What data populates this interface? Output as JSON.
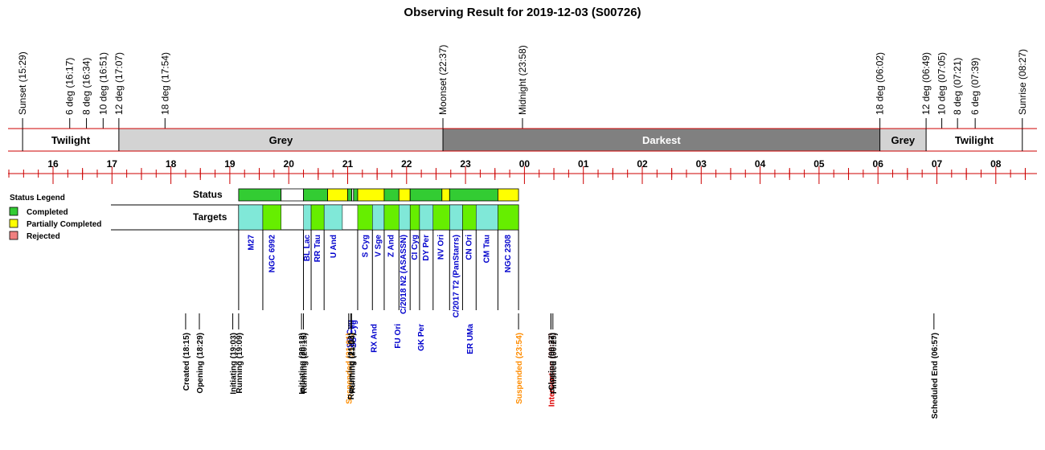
{
  "title": "Observing Result for 2019-12-03 (S00726)",
  "colors": {
    "axis_red": "#cc0000",
    "twilight": "#ffffff",
    "grey": "#d3d3d3",
    "darkest": "#808080",
    "completed": "#33cc33",
    "partial": "#ffff00",
    "rejected": "#f08080",
    "target_cyan": "#80e8d8",
    "target_green": "#66ee00",
    "target_text": "#0000cc",
    "moon_text": "#0000cc",
    "suspended_text": "#ff8c00",
    "intervention_text": "#dd0000"
  },
  "time_axis": {
    "hours": [
      {
        "label": "16",
        "t": 16
      },
      {
        "label": "17",
        "t": 17
      },
      {
        "label": "18",
        "t": 18
      },
      {
        "label": "19",
        "t": 19
      },
      {
        "label": "20",
        "t": 20
      },
      {
        "label": "21",
        "t": 21
      },
      {
        "label": "22",
        "t": 22
      },
      {
        "label": "23",
        "t": 23
      },
      {
        "label": "00",
        "t": 24
      },
      {
        "label": "01",
        "t": 25
      },
      {
        "label": "02",
        "t": 26
      },
      {
        "label": "03",
        "t": 27
      },
      {
        "label": "04",
        "t": 28
      },
      {
        "label": "05",
        "t": 29
      },
      {
        "label": "06",
        "t": 30
      },
      {
        "label": "07",
        "t": 31
      },
      {
        "label": "08",
        "t": 32
      }
    ],
    "t_min": 15.25,
    "t_max": 32.6
  },
  "sun_events": [
    {
      "label": "Sunset (15:29)",
      "t": 15.483,
      "color": "#000000"
    },
    {
      "label": "6 deg (16:17)",
      "t": 16.283,
      "color": "#000000"
    },
    {
      "label": "8 deg (16:34)",
      "t": 16.567,
      "color": "#000000"
    },
    {
      "label": "10 deg (16:51)",
      "t": 16.85,
      "color": "#000000"
    },
    {
      "label": "12 deg (17:07)",
      "t": 17.117,
      "color": "#000000"
    },
    {
      "label": "18 deg (17:54)",
      "t": 17.9,
      "color": "#000000"
    },
    {
      "label": "Moonset (22:37)",
      "t": 22.617,
      "color": "#0000cc"
    },
    {
      "label": "Midnight (23:58)",
      "t": 23.967,
      "color": "#000000"
    },
    {
      "label": "18 deg (06:02)",
      "t": 30.033,
      "color": "#000000"
    },
    {
      "label": "12 deg (06:49)",
      "t": 30.817,
      "color": "#000000"
    },
    {
      "label": "10 deg (07:05)",
      "t": 31.083,
      "color": "#000000"
    },
    {
      "label": "8 deg (07:21)",
      "t": 31.35,
      "color": "#000000"
    },
    {
      "label": "6 deg (07:39)",
      "t": 31.65,
      "color": "#000000"
    },
    {
      "label": "Sunrise (08:27)",
      "t": 32.45,
      "color": "#000000"
    }
  ],
  "bands": [
    {
      "label": "Twilight",
      "start": 15.483,
      "end": 17.117,
      "fill": "#ffffff"
    },
    {
      "label": "Grey",
      "start": 17.117,
      "end": 22.617,
      "fill": "#d3d3d3"
    },
    {
      "label": "Darkest",
      "start": 22.617,
      "end": 30.033,
      "fill": "#808080"
    },
    {
      "label": "Grey",
      "start": 30.033,
      "end": 30.817,
      "fill": "#d3d3d3"
    },
    {
      "label": "Twilight",
      "start": 30.817,
      "end": 32.45,
      "fill": "#ffffff"
    }
  ],
  "rows": {
    "status_label": "Status",
    "targets_label": "Targets"
  },
  "legend": {
    "title": "Status Legend",
    "items": [
      {
        "label": "Completed",
        "color": "#33cc33"
      },
      {
        "label": "Partially Completed",
        "color": "#ffff00"
      },
      {
        "label": "Rejected",
        "color": "#f08080"
      }
    ]
  },
  "status_segments": [
    {
      "start": 19.15,
      "end": 19.87,
      "color": "#33cc33"
    },
    {
      "start": 19.87,
      "end": 20.25,
      "color": "#ffffff"
    },
    {
      "start": 20.25,
      "end": 20.66,
      "color": "#33cc33"
    },
    {
      "start": 20.66,
      "end": 21.0,
      "color": "#ffff00"
    },
    {
      "start": 21.0,
      "end": 21.07,
      "color": "#33cc33"
    },
    {
      "start": 21.07,
      "end": 21.1,
      "color": "#ffffff"
    },
    {
      "start": 21.1,
      "end": 21.17,
      "color": "#33cc33"
    },
    {
      "start": 21.17,
      "end": 21.62,
      "color": "#ffff00"
    },
    {
      "start": 21.62,
      "end": 21.87,
      "color": "#33cc33"
    },
    {
      "start": 21.87,
      "end": 22.06,
      "color": "#ffff00"
    },
    {
      "start": 22.06,
      "end": 22.6,
      "color": "#33cc33"
    },
    {
      "start": 22.6,
      "end": 22.73,
      "color": "#ffff00"
    },
    {
      "start": 22.73,
      "end": 23.55,
      "color": "#33cc33"
    },
    {
      "start": 23.55,
      "end": 23.9,
      "color": "#ffff00"
    }
  ],
  "target_segments": [
    {
      "name": "M27",
      "start": 19.15,
      "end": 19.56,
      "color": "#80e8d8",
      "label_t": 19.36
    },
    {
      "name": "NGC 6992",
      "start": 19.56,
      "end": 19.87,
      "color": "#66ee00",
      "label_t": 19.72
    },
    {
      "name": "BL Lac",
      "start": 20.25,
      "end": 20.38,
      "color": "#80e8d8",
      "label_t": 20.31
    },
    {
      "name": "RR Tau",
      "start": 20.38,
      "end": 20.6,
      "color": "#66ee00",
      "label_t": 20.49
    },
    {
      "name": "U And",
      "start": 20.6,
      "end": 20.91,
      "color": "#80e8d8",
      "label_t": 20.76
    },
    {
      "name": "S Cyg",
      "start": 21.17,
      "end": 21.42,
      "color": "#66ee00",
      "label_t": 21.3
    },
    {
      "name": "V Sge",
      "start": 21.42,
      "end": 21.62,
      "color": "#80e8d8",
      "label_t": 21.52
    },
    {
      "name": "Z And",
      "start": 21.62,
      "end": 21.87,
      "color": "#66ee00",
      "label_t": 21.74
    },
    {
      "name": "C/2018 N2 (ASASSN)",
      "start": 21.87,
      "end": 22.06,
      "color": "#80e8d8",
      "label_t": 21.95
    },
    {
      "name": "CI Cyg",
      "start": 22.06,
      "end": 22.22,
      "color": "#66ee00",
      "label_t": 22.14
    },
    {
      "name": "DY Per",
      "start": 22.22,
      "end": 22.45,
      "color": "#80e8d8",
      "label_t": 22.33
    },
    {
      "name": "NV Ori",
      "start": 22.45,
      "end": 22.73,
      "color": "#66ee00",
      "label_t": 22.58
    },
    {
      "name": "C/2017 T2 (PanStarrs)",
      "start": 22.73,
      "end": 22.95,
      "color": "#80e8d8",
      "label_t": 22.84
    },
    {
      "name": "CN Ori",
      "start": 22.95,
      "end": 23.18,
      "color": "#66ee00",
      "label_t": 23.06
    },
    {
      "name": "CM Tau",
      "start": 23.18,
      "end": 23.55,
      "color": "#80e8d8",
      "label_t": 23.36
    },
    {
      "name": "NGC 2308",
      "start": 23.55,
      "end": 23.9,
      "color": "#66ee00",
      "label_t": 23.72
    }
  ],
  "mid_targets": [
    {
      "name": "RX And",
      "t": 21.45
    },
    {
      "name": "FU Ori",
      "t": 21.85
    },
    {
      "name": "GK Per",
      "t": 22.25
    },
    {
      "name": "ER UMa",
      "t": 23.08
    }
  ],
  "extra_tiny_labels": [
    {
      "name": "SS Cyg",
      "t": 21.04
    },
    {
      "name": "SS Cyg",
      "t": 21.1
    }
  ],
  "bottom_events": [
    {
      "label": "Created (18:15)",
      "t": 18.25,
      "color": "#000000"
    },
    {
      "label": "Opening (18:29)",
      "t": 18.483,
      "color": "#000000"
    },
    {
      "label": "Initiating (19:03)",
      "t": 19.05,
      "color": "#000000"
    },
    {
      "label": "Running (19:09)",
      "t": 19.15,
      "color": "#000000"
    },
    {
      "label": "Initiating (20:13)",
      "t": 20.217,
      "color": "#000000"
    },
    {
      "label": "Running (20:15)",
      "t": 20.25,
      "color": "#000000"
    },
    {
      "label": "Suspended (21:01)",
      "t": 21.017,
      "color": "#ff8c00"
    },
    {
      "label": "Resuming (21:03)",
      "t": 21.05,
      "color": "#000000"
    },
    {
      "label": "Running (21:04)",
      "t": 21.067,
      "color": "#000000"
    },
    {
      "label": "Suspended (23:54)",
      "t": 23.9,
      "color": "#ff8c00"
    },
    {
      "label": "Intervention (00:27)",
      "t": 24.45,
      "color": "#dd0000"
    },
    {
      "label": "Closing (00:27)",
      "t": 24.45,
      "color": "#000000"
    },
    {
      "label": "Finished (00:29)",
      "t": 24.483,
      "color": "#000000"
    },
    {
      "label": "Scheduled End (06:57)",
      "t": 30.95,
      "color": "#000000"
    }
  ],
  "chart_data": {
    "type": "timeline",
    "title": "Observing Result for 2019-12-03 (S00726)",
    "x_unit": "local time (hours)",
    "xlim": [
      "15:15",
      "08:36"
    ],
    "grid": false,
    "legend_placement": "left",
    "legend_entries": [
      "Completed",
      "Partially Completed",
      "Rejected"
    ],
    "bands": [
      "Twilight",
      "Grey",
      "Darkest",
      "Grey",
      "Twilight"
    ],
    "targets": [
      "M27",
      "NGC 6992",
      "BL Lac",
      "RR Tau",
      "U And",
      "S Cyg",
      "V Sge",
      "Z And",
      "C/2018 N2 (ASASSN)",
      "CI Cyg",
      "DY Per",
      "NV Ori",
      "C/2017 T2 (PanStarrs)",
      "CN Ori",
      "CM Tau",
      "NGC 2308",
      "RX And",
      "FU Ori",
      "GK Per",
      "ER UMa"
    ]
  }
}
